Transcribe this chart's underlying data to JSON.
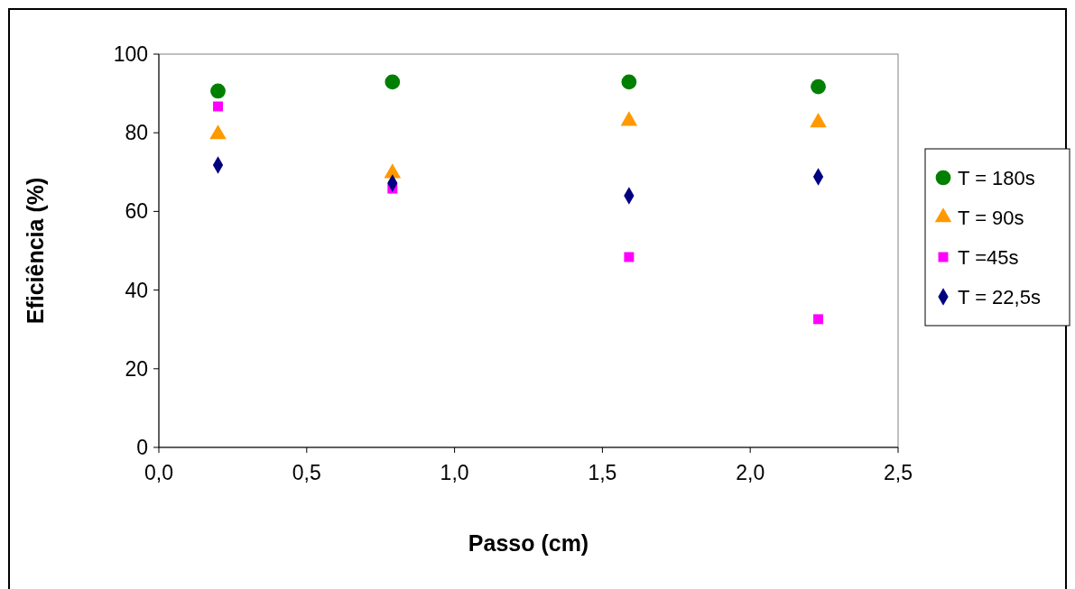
{
  "chart_data": {
    "type": "scatter",
    "xlabel": "Passo (cm)",
    "ylabel": "Eficiência (%)",
    "x": [
      0.2,
      0.79,
      1.59,
      2.23
    ],
    "xlim": [
      0,
      2.5
    ],
    "xticks": [
      {
        "value": 0,
        "label": "0,0"
      },
      {
        "value": 0.5,
        "label": "0,5"
      },
      {
        "value": 1,
        "label": "1,0"
      },
      {
        "value": 1.5,
        "label": "1,5"
      },
      {
        "value": 2,
        "label": "2,0"
      },
      {
        "value": 2.5,
        "label": "2,5"
      }
    ],
    "ylim": [
      0,
      100
    ],
    "yticks": [
      0,
      20,
      40,
      60,
      80,
      100
    ],
    "grid": false,
    "legend": "right",
    "series": [
      {
        "name": "T = 180s",
        "color": "#008000",
        "marker": "circle",
        "values": [
          90.6,
          92.9,
          92.9,
          91.7
        ]
      },
      {
        "name": "T = 90s",
        "color": "#ff9900",
        "marker": "triangle",
        "values": [
          79.6,
          69.7,
          83.0,
          82.6
        ]
      },
      {
        "name": "T =45s",
        "color": "#ff00ff",
        "marker": "square",
        "values": [
          86.7,
          65.8,
          48.4,
          32.6
        ]
      },
      {
        "name": "T = 22,5s",
        "color": "#000080",
        "marker": "diamond",
        "values": [
          71.8,
          67.2,
          64.0,
          68.8
        ]
      }
    ]
  }
}
